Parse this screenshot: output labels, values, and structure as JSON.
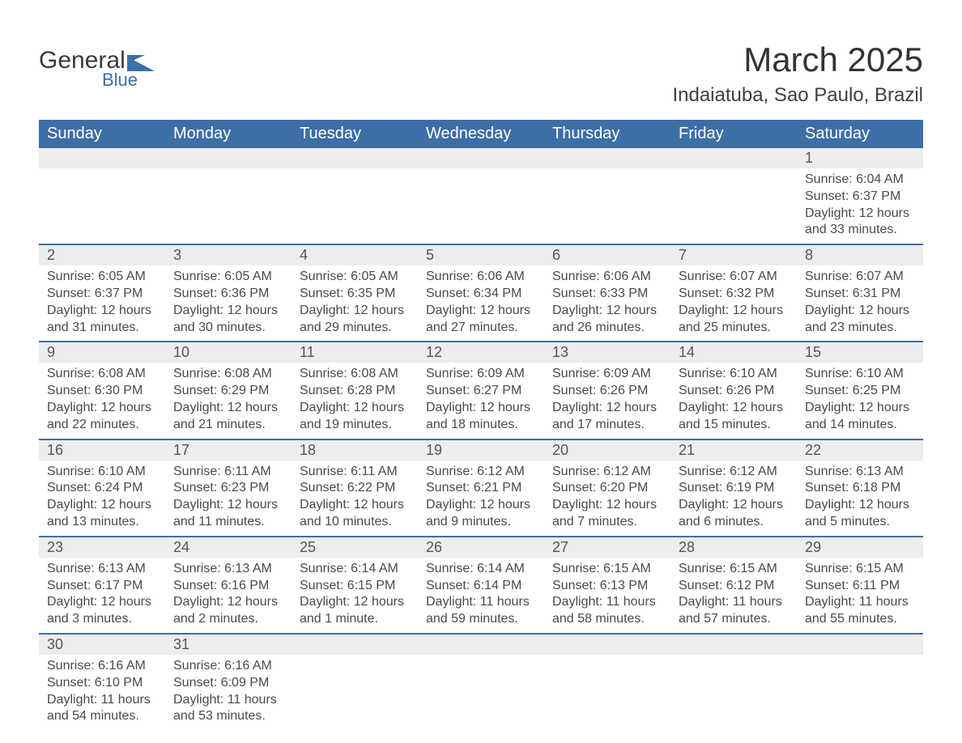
{
  "brand": {
    "name": "General",
    "sub": "Blue"
  },
  "title": "March 2025",
  "location": "Indaiatuba, Sao Paulo, Brazil",
  "colors": {
    "header_bg": "#3d6fa6",
    "header_text": "#ffffff",
    "row_divider": "#3d6fa6",
    "daynum_bg": "#ededed",
    "body_text": "#4a4a4a",
    "page_bg": "#ffffff",
    "logo_blue": "#3d6fa6",
    "title_color": "#333333"
  },
  "typography": {
    "title_fontsize": 42,
    "location_fontsize": 24,
    "weekday_fontsize": 20,
    "daynum_fontsize": 18,
    "body_fontsize": 16,
    "font_family": "Arial"
  },
  "weekdays": [
    "Sunday",
    "Monday",
    "Tuesday",
    "Wednesday",
    "Thursday",
    "Friday",
    "Saturday"
  ],
  "weeks": [
    [
      null,
      null,
      null,
      null,
      null,
      null,
      {
        "n": "1",
        "sr": "6:04 AM",
        "ss": "6:37 PM",
        "dl": "12 hours and 33 minutes."
      }
    ],
    [
      {
        "n": "2",
        "sr": "6:05 AM",
        "ss": "6:37 PM",
        "dl": "12 hours and 31 minutes."
      },
      {
        "n": "3",
        "sr": "6:05 AM",
        "ss": "6:36 PM",
        "dl": "12 hours and 30 minutes."
      },
      {
        "n": "4",
        "sr": "6:05 AM",
        "ss": "6:35 PM",
        "dl": "12 hours and 29 minutes."
      },
      {
        "n": "5",
        "sr": "6:06 AM",
        "ss": "6:34 PM",
        "dl": "12 hours and 27 minutes."
      },
      {
        "n": "6",
        "sr": "6:06 AM",
        "ss": "6:33 PM",
        "dl": "12 hours and 26 minutes."
      },
      {
        "n": "7",
        "sr": "6:07 AM",
        "ss": "6:32 PM",
        "dl": "12 hours and 25 minutes."
      },
      {
        "n": "8",
        "sr": "6:07 AM",
        "ss": "6:31 PM",
        "dl": "12 hours and 23 minutes."
      }
    ],
    [
      {
        "n": "9",
        "sr": "6:08 AM",
        "ss": "6:30 PM",
        "dl": "12 hours and 22 minutes."
      },
      {
        "n": "10",
        "sr": "6:08 AM",
        "ss": "6:29 PM",
        "dl": "12 hours and 21 minutes."
      },
      {
        "n": "11",
        "sr": "6:08 AM",
        "ss": "6:28 PM",
        "dl": "12 hours and 19 minutes."
      },
      {
        "n": "12",
        "sr": "6:09 AM",
        "ss": "6:27 PM",
        "dl": "12 hours and 18 minutes."
      },
      {
        "n": "13",
        "sr": "6:09 AM",
        "ss": "6:26 PM",
        "dl": "12 hours and 17 minutes."
      },
      {
        "n": "14",
        "sr": "6:10 AM",
        "ss": "6:26 PM",
        "dl": "12 hours and 15 minutes."
      },
      {
        "n": "15",
        "sr": "6:10 AM",
        "ss": "6:25 PM",
        "dl": "12 hours and 14 minutes."
      }
    ],
    [
      {
        "n": "16",
        "sr": "6:10 AM",
        "ss": "6:24 PM",
        "dl": "12 hours and 13 minutes."
      },
      {
        "n": "17",
        "sr": "6:11 AM",
        "ss": "6:23 PM",
        "dl": "12 hours and 11 minutes."
      },
      {
        "n": "18",
        "sr": "6:11 AM",
        "ss": "6:22 PM",
        "dl": "12 hours and 10 minutes."
      },
      {
        "n": "19",
        "sr": "6:12 AM",
        "ss": "6:21 PM",
        "dl": "12 hours and 9 minutes."
      },
      {
        "n": "20",
        "sr": "6:12 AM",
        "ss": "6:20 PM",
        "dl": "12 hours and 7 minutes."
      },
      {
        "n": "21",
        "sr": "6:12 AM",
        "ss": "6:19 PM",
        "dl": "12 hours and 6 minutes."
      },
      {
        "n": "22",
        "sr": "6:13 AM",
        "ss": "6:18 PM",
        "dl": "12 hours and 5 minutes."
      }
    ],
    [
      {
        "n": "23",
        "sr": "6:13 AM",
        "ss": "6:17 PM",
        "dl": "12 hours and 3 minutes."
      },
      {
        "n": "24",
        "sr": "6:13 AM",
        "ss": "6:16 PM",
        "dl": "12 hours and 2 minutes."
      },
      {
        "n": "25",
        "sr": "6:14 AM",
        "ss": "6:15 PM",
        "dl": "12 hours and 1 minute."
      },
      {
        "n": "26",
        "sr": "6:14 AM",
        "ss": "6:14 PM",
        "dl": "11 hours and 59 minutes."
      },
      {
        "n": "27",
        "sr": "6:15 AM",
        "ss": "6:13 PM",
        "dl": "11 hours and 58 minutes."
      },
      {
        "n": "28",
        "sr": "6:15 AM",
        "ss": "6:12 PM",
        "dl": "11 hours and 57 minutes."
      },
      {
        "n": "29",
        "sr": "6:15 AM",
        "ss": "6:11 PM",
        "dl": "11 hours and 55 minutes."
      }
    ],
    [
      {
        "n": "30",
        "sr": "6:16 AM",
        "ss": "6:10 PM",
        "dl": "11 hours and 54 minutes."
      },
      {
        "n": "31",
        "sr": "6:16 AM",
        "ss": "6:09 PM",
        "dl": "11 hours and 53 minutes."
      },
      null,
      null,
      null,
      null,
      null
    ]
  ],
  "labels": {
    "sunrise": "Sunrise:",
    "sunset": "Sunset:",
    "daylight": "Daylight:"
  }
}
